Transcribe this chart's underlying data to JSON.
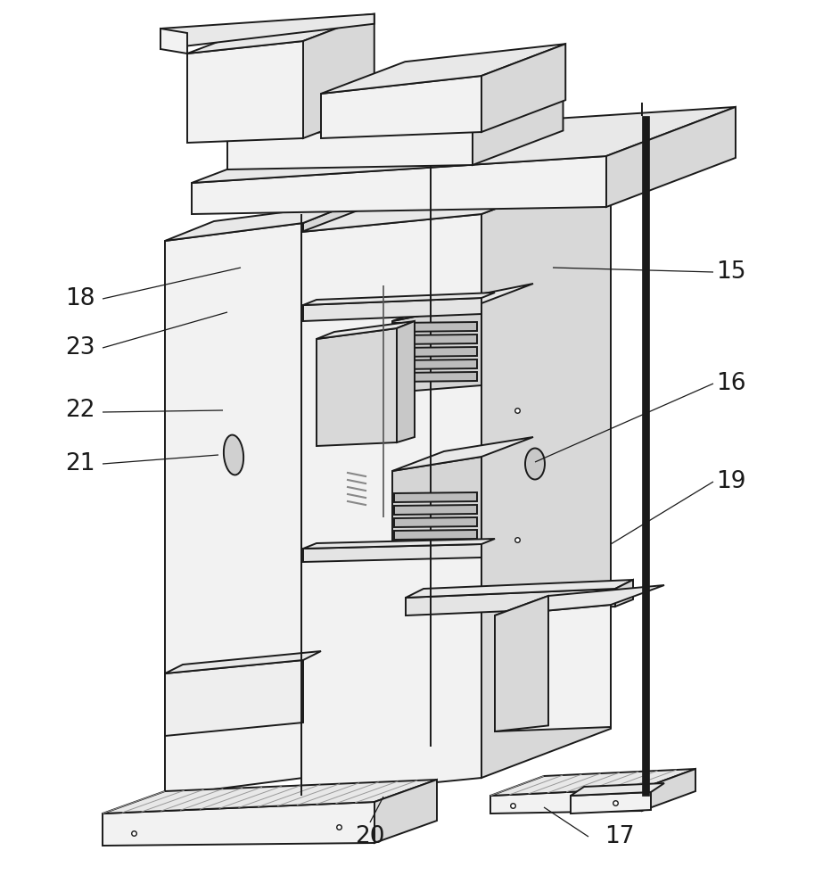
{
  "bg_color": "#ffffff",
  "lc": "#1a1a1a",
  "lw": 1.4,
  "lw_thin": 0.9,
  "lw_thick": 2.2,
  "fc_light": "#f0f0f0",
  "fc_mid": "#e0e0e0",
  "fc_dark": "#cccccc",
  "fc_white": "#f8f8f8",
  "fc_darker": "#b8b8b8",
  "fc_black": "#111111",
  "font_size": 19
}
